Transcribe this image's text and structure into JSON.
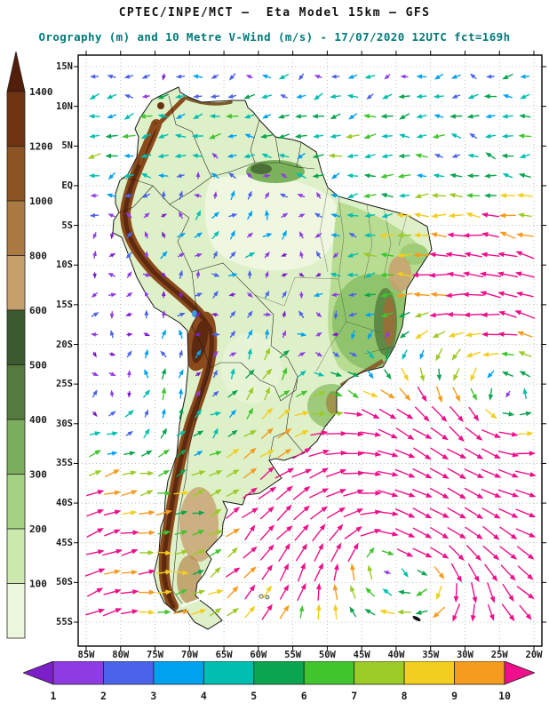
{
  "header": {
    "title_line1": "CPTEC/INPE/MCT —  Eta Model 15km — GFS",
    "title_line2": "Orography (m) and 10 Metre V-Wind (m/s) - 17/07/2020 12UTC fct=169h"
  },
  "chart_data": {
    "type": "heatmap",
    "title": "Orography (m) and 10 Metre V-Wind (m/s)",
    "institution": "CPTEC/INPE/MCT",
    "model": "Eta Model 15km",
    "boundary_model": "GFS",
    "valid_date": "17/07/2020",
    "valid_time": "12UTC",
    "forecast": "fct=169h",
    "region": "South America",
    "y_axis": {
      "label": "latitude",
      "ticks": [
        "15N",
        "10N",
        "5N",
        "EQ",
        "5S",
        "10S",
        "15S",
        "20S",
        "25S",
        "30S",
        "35S",
        "40S",
        "45S",
        "50S",
        "55S"
      ]
    },
    "x_axis": {
      "label": "longitude",
      "ticks": [
        "85W",
        "80W",
        "75W",
        "70W",
        "65W",
        "60W",
        "55W",
        "50W",
        "45W",
        "40W",
        "35W",
        "30W",
        "25W",
        "20W"
      ]
    },
    "orography_scale": {
      "units": "m",
      "levels": [
        100,
        200,
        300,
        400,
        500,
        600,
        800,
        1000,
        1200,
        1400
      ],
      "band_colors_low_to_high": [
        "#edf7dd",
        "#cbe8ad",
        "#a3d382",
        "#7bae5c",
        "#557a3e",
        "#3c5a30",
        "#c5a06b",
        "#ab7a42",
        "#8d5423",
        "#703413",
        "#541f0a"
      ]
    },
    "wind_scale": {
      "units": "m/s",
      "levels": [
        1,
        2,
        3,
        4,
        5,
        6,
        7,
        8,
        9,
        10
      ],
      "band_colors_low_to_high": [
        "#7d1fc8",
        "#8f3be4",
        "#4a63e8",
        "#00a2f0",
        "#00bfb0",
        "#0aa54e",
        "#41c52f",
        "#9ccb28",
        "#f2ce1e",
        "#f59b1e",
        "#ee0f8a"
      ]
    }
  },
  "styles": {
    "subtitle_color": "#007a7a",
    "annotation_color": "#1c1c1c"
  }
}
